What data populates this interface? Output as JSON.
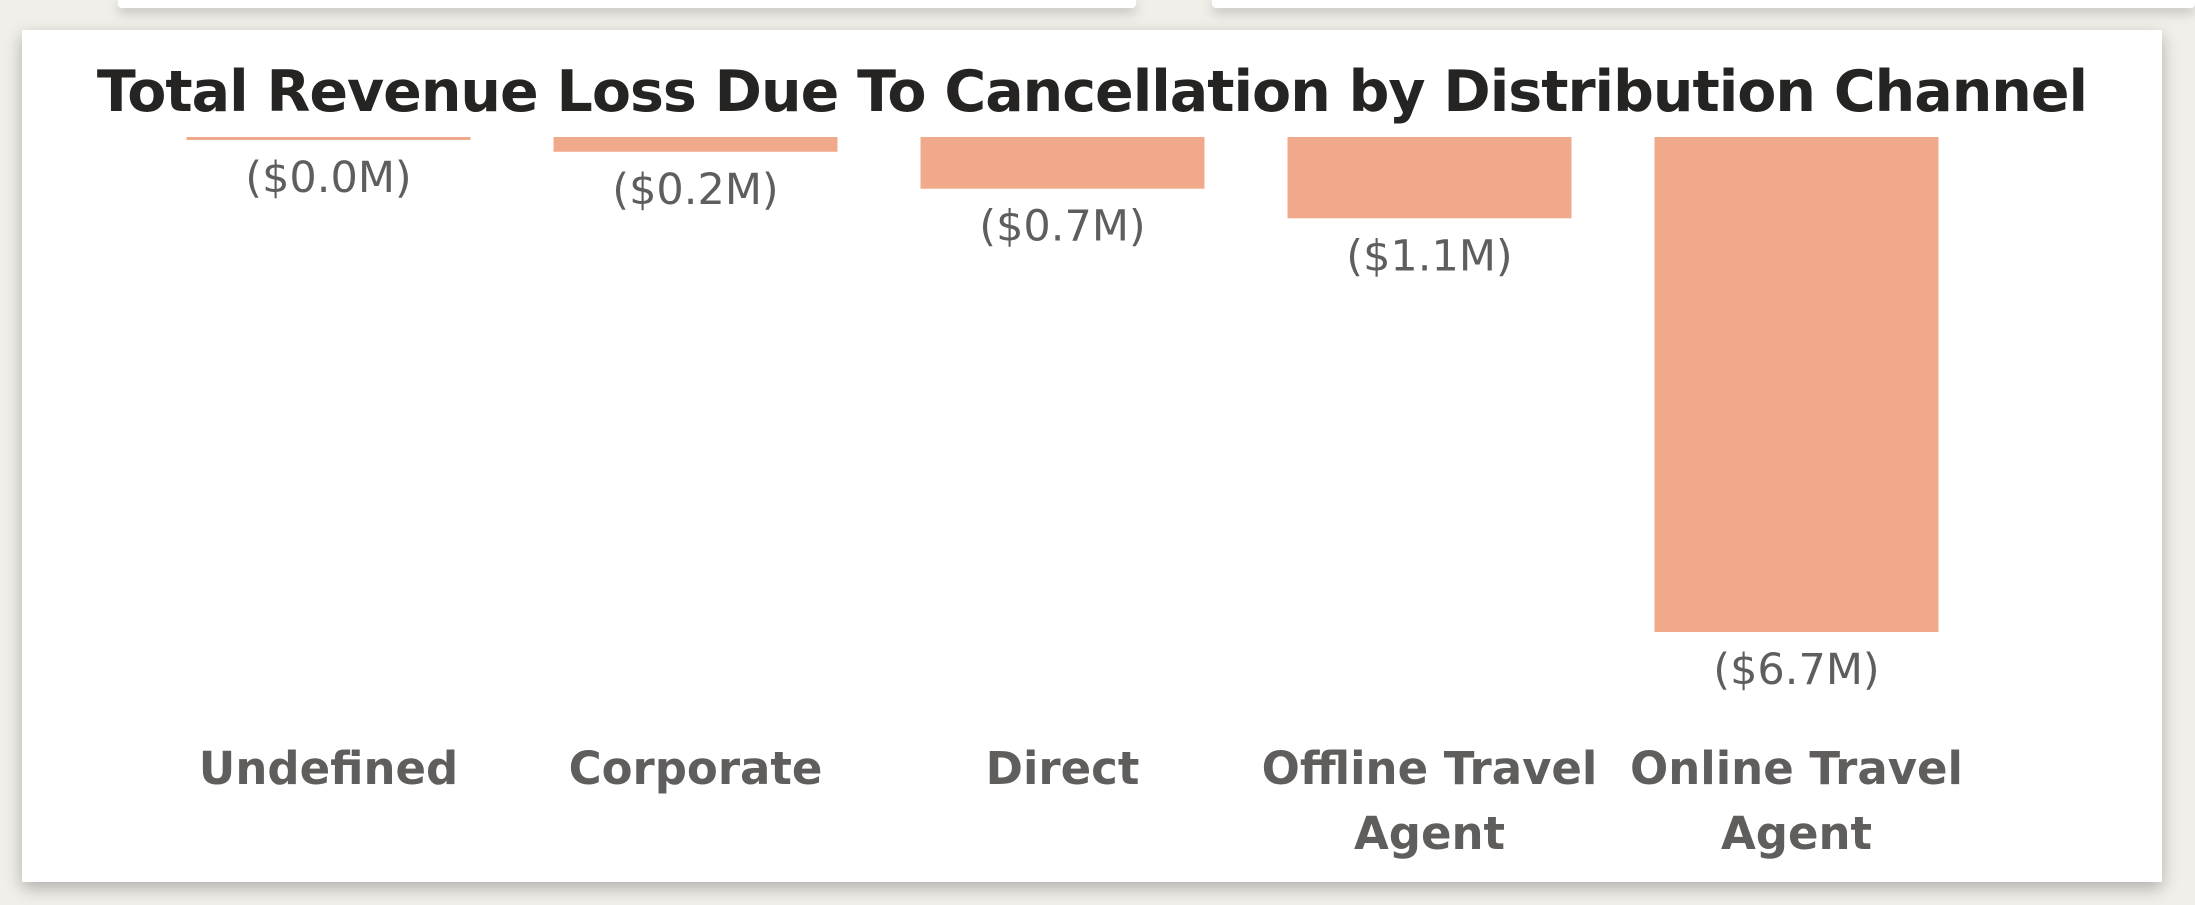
{
  "chart_data": {
    "type": "bar",
    "title": "Total Revenue Loss Due To Cancellation by Distribution Channel",
    "categories": [
      [
        "Undefined"
      ],
      [
        "Corporate"
      ],
      [
        "Direct"
      ],
      [
        "Offline Travel",
        "Agent"
      ],
      [
        "Online Travel",
        "Agent"
      ]
    ],
    "values": [
      -0.0,
      -0.2,
      -0.7,
      -1.1,
      -6.7
    ],
    "data_labels": [
      "($0.0M)",
      "($0.2M)",
      "($0.7M)",
      "($1.1M)",
      "($6.7M)"
    ],
    "units": "$M",
    "ylim": [
      -6.7,
      0
    ],
    "grid": false,
    "legend": "none",
    "colors": {
      "bar": "#f0a98a",
      "title": "#252423",
      "label": "#605e5c"
    }
  }
}
